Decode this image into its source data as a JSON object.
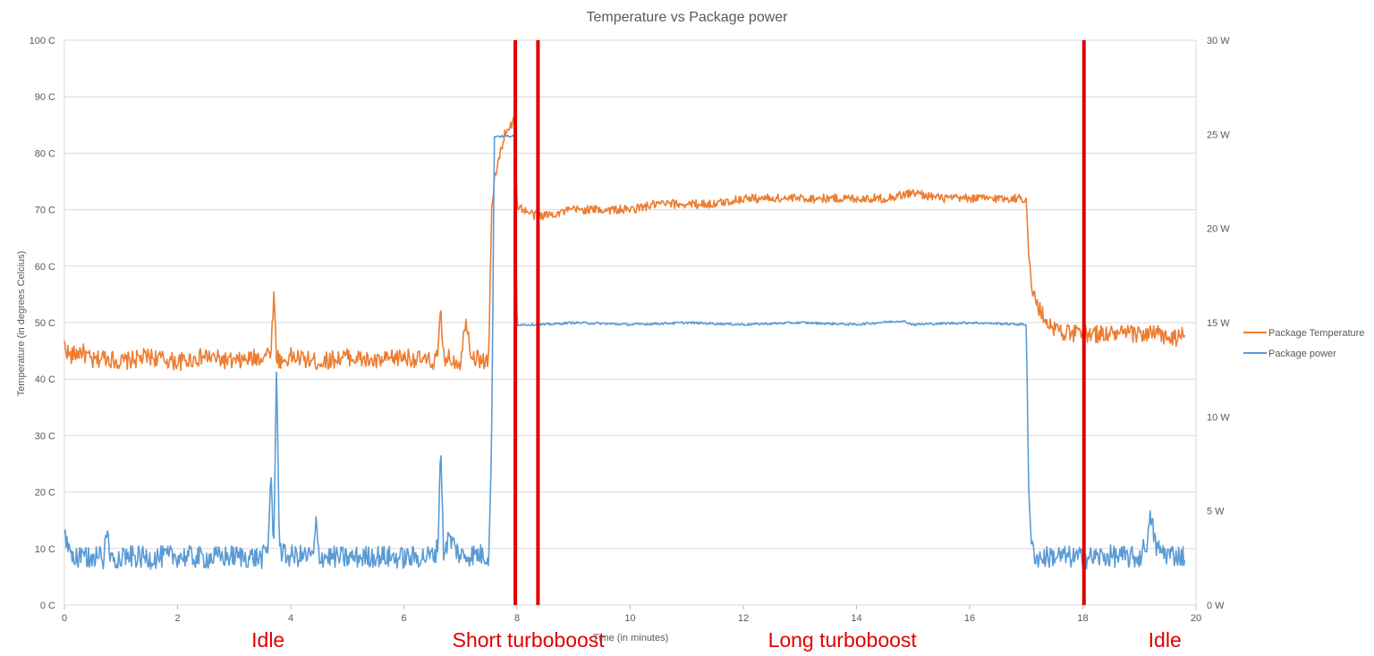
{
  "chart_data": {
    "type": "line",
    "title": "Temperature vs Package power",
    "xlabel": "Time (in minutes)",
    "ylabel": "Temperature (in degrees Celcius)",
    "xlim": [
      0,
      20
    ],
    "x_ticks": [
      "0",
      "2",
      "4",
      "6",
      "8",
      "10",
      "12",
      "14",
      "16",
      "18",
      "20"
    ],
    "y_left": {
      "lim": [
        0,
        100
      ],
      "ticks": [
        "0 C",
        "10 C",
        "20 C",
        "30 C",
        "40 C",
        "50 C",
        "60 C",
        "70 C",
        "80 C",
        "90 C",
        "100 C"
      ]
    },
    "y_right": {
      "lim": [
        0,
        30
      ],
      "ticks": [
        "0 W",
        "5 W",
        "10 W",
        "15 W",
        "20 W",
        "25 W",
        "30 W"
      ]
    },
    "grid": true,
    "legend_position": "right",
    "series": [
      {
        "name": "Package Temperature",
        "axis": "left",
        "color": "#ED7D31",
        "x": [
          0,
          0.1,
          0.3,
          0.5,
          0.7,
          1.0,
          1.5,
          2.0,
          2.5,
          3.0,
          3.5,
          3.65,
          3.7,
          3.75,
          3.85,
          4.0,
          4.5,
          5.0,
          5.5,
          6.0,
          6.5,
          6.6,
          6.65,
          6.7,
          7.0,
          7.1,
          7.2,
          7.5,
          7.55,
          7.6,
          7.7,
          7.8,
          7.9,
          7.95,
          8.0,
          8.1,
          8.3,
          8.5,
          9.0,
          9.5,
          10.0,
          10.5,
          11.0,
          11.5,
          12.0,
          12.5,
          13.0,
          13.5,
          14.0,
          14.5,
          15.0,
          15.5,
          16.0,
          16.5,
          17.0,
          17.05,
          17.1,
          17.2,
          17.3,
          17.5,
          17.8,
          18.0,
          18.3,
          18.6,
          19.0,
          19.3,
          19.6,
          19.8
        ],
        "y": [
          46,
          44,
          45,
          43,
          44,
          43,
          44,
          43,
          44,
          43,
          44,
          45,
          55,
          44,
          43,
          44,
          43,
          44,
          43,
          44,
          43,
          44,
          52,
          44,
          43,
          51,
          44,
          43,
          70,
          75,
          80,
          84,
          85,
          86,
          71,
          70,
          69,
          69,
          70,
          70,
          70,
          71,
          71,
          71,
          72,
          72,
          72,
          72,
          72,
          72,
          73,
          72,
          72,
          72,
          72,
          61,
          56,
          53,
          51,
          49,
          48,
          48,
          48,
          48,
          48,
          48,
          47,
          48
        ]
      },
      {
        "name": "Package power",
        "axis": "right",
        "color": "#5B9BD5",
        "x": [
          0,
          0.2,
          0.5,
          0.7,
          0.75,
          0.8,
          1.0,
          1.5,
          2.0,
          2.5,
          3.0,
          3.5,
          3.6,
          3.65,
          3.7,
          3.75,
          3.8,
          3.9,
          4.0,
          4.4,
          4.45,
          4.5,
          5.0,
          5.5,
          6.0,
          6.5,
          6.6,
          6.65,
          6.7,
          6.8,
          7.0,
          7.3,
          7.5,
          7.55,
          7.6,
          7.7,
          7.8,
          7.95,
          8.0,
          8.05,
          8.5,
          9.0,
          10.0,
          11.0,
          12.0,
          13.0,
          14.0,
          14.8,
          15.0,
          16.0,
          17.0,
          17.05,
          17.1,
          17.2,
          17.5,
          18.0,
          18.5,
          19.0,
          19.15,
          19.2,
          19.3,
          19.5,
          19.8
        ],
        "y": [
          3.6,
          2.4,
          2.6,
          2.5,
          4.2,
          2.5,
          2.6,
          2.5,
          2.6,
          2.5,
          2.6,
          2.5,
          3.0,
          7.2,
          2.8,
          13.0,
          3.0,
          2.6,
          2.6,
          2.6,
          4.3,
          2.6,
          2.5,
          2.6,
          2.5,
          2.6,
          3.0,
          8.6,
          2.8,
          3.6,
          2.6,
          2.7,
          2.6,
          8.5,
          24.9,
          24.9,
          24.9,
          24.9,
          14.9,
          14.9,
          14.9,
          15.0,
          14.9,
          15.0,
          14.9,
          15.0,
          14.9,
          15.1,
          14.9,
          15.0,
          14.9,
          5.0,
          3.0,
          2.5,
          2.6,
          2.5,
          2.6,
          2.5,
          3.5,
          4.7,
          3.0,
          2.7,
          2.6
        ]
      }
    ],
    "annotations": {
      "phase_lines": [
        {
          "x": 7.97,
          "color": "#E00000"
        },
        {
          "x": 8.37,
          "color": "#E00000"
        },
        {
          "x": 18.02,
          "color": "#E00000"
        }
      ],
      "phase_labels": [
        {
          "text": "Idle",
          "x": 3.6
        },
        {
          "text": "Short turboboost",
          "x": 8.2
        },
        {
          "text": "Long turboboost",
          "x": 13.75
        },
        {
          "text": "Idle",
          "x": 19.45
        }
      ],
      "label_color": "#E00000"
    }
  }
}
